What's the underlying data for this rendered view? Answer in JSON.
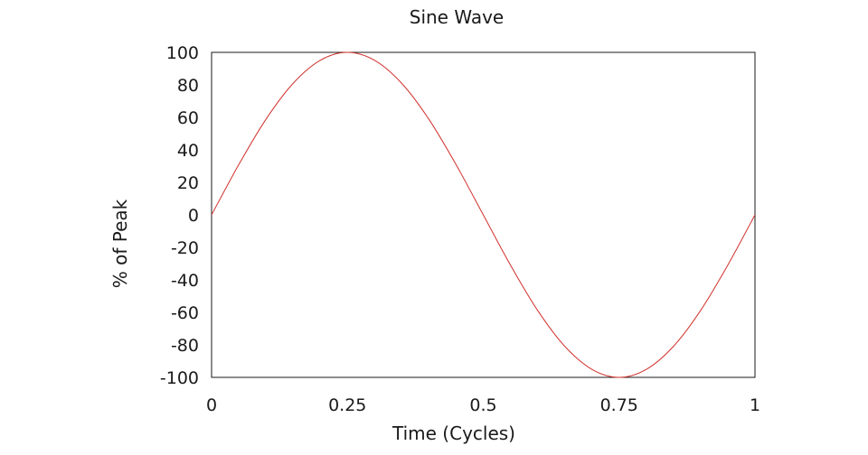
{
  "chart_data": {
    "type": "line",
    "title": "Sine Wave",
    "xlabel": "Time (Cycles)",
    "ylabel": "% of Peak",
    "xlim": [
      0,
      1
    ],
    "ylim": [
      -100,
      100
    ],
    "x_ticks": [
      {
        "value": 0,
        "label": "0"
      },
      {
        "value": 0.25,
        "label": "0.25"
      },
      {
        "value": 0.5,
        "label": "0.5"
      },
      {
        "value": 0.75,
        "label": "0.75"
      },
      {
        "value": 1,
        "label": "1"
      }
    ],
    "y_ticks": [
      {
        "value": 100,
        "label": "100"
      },
      {
        "value": 80,
        "label": "80"
      },
      {
        "value": 60,
        "label": "60"
      },
      {
        "value": 40,
        "label": "40"
      },
      {
        "value": 20,
        "label": "20"
      },
      {
        "value": 0,
        "label": "0"
      },
      {
        "value": -20,
        "label": "-20"
      },
      {
        "value": -40,
        "label": "-40"
      },
      {
        "value": -60,
        "label": "-60"
      },
      {
        "value": -80,
        "label": "-80"
      },
      {
        "value": -100,
        "label": "-100"
      }
    ],
    "grid": false,
    "legend": "none",
    "series": [
      {
        "color": "#d0312d",
        "x": [
          0,
          0.05,
          0.1,
          0.15,
          0.2,
          0.25,
          0.3,
          0.35,
          0.4,
          0.45,
          0.5,
          0.55,
          0.6,
          0.65,
          0.7,
          0.75,
          0.8,
          0.85,
          0.9,
          0.95,
          1
        ],
        "y": [
          0,
          30.9,
          58.8,
          80.9,
          95.1,
          100,
          95.1,
          80.9,
          58.8,
          30.9,
          0,
          -30.9,
          -58.8,
          -80.9,
          -95.1,
          -100,
          -95.1,
          -80.9,
          -58.8,
          -30.9,
          0
        ]
      }
    ]
  }
}
